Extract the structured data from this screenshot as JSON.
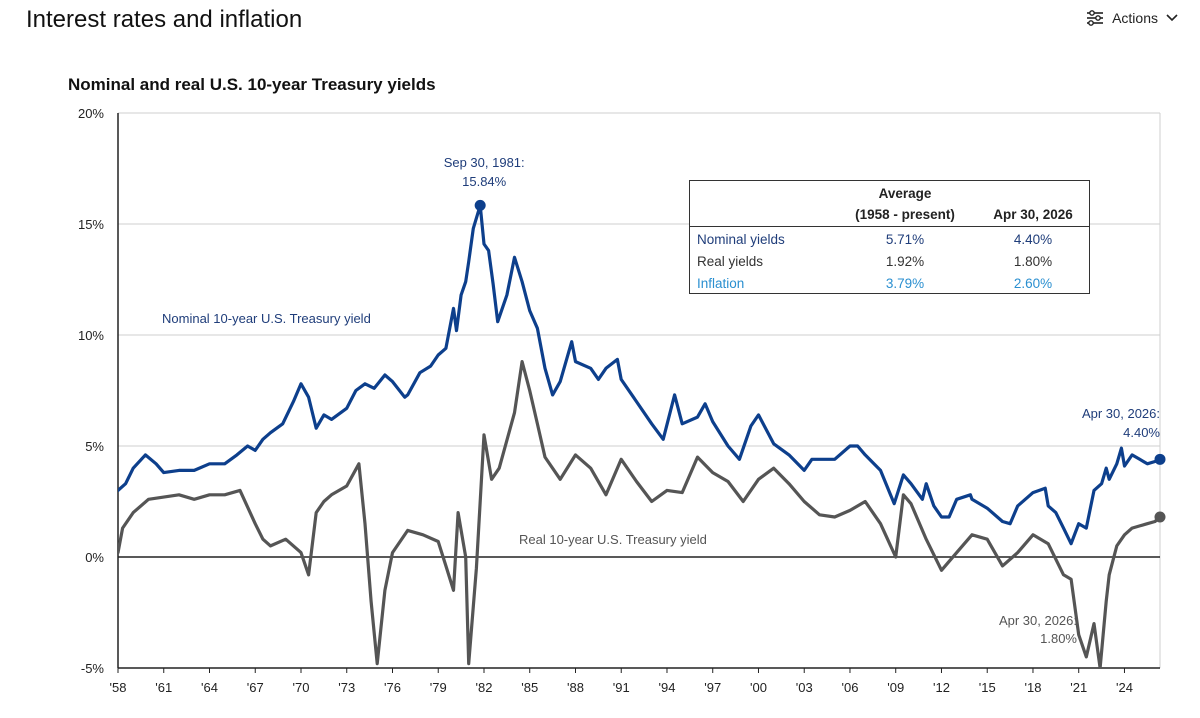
{
  "page": {
    "title": "Interest rates and inflation",
    "actions_label": "Actions"
  },
  "chart_data": {
    "type": "line",
    "title": "Nominal and real U.S. 10-year Treasury yields",
    "xlabel": "",
    "ylabel": "",
    "ylim": [
      -5,
      20
    ],
    "y_ticks": [
      "20%",
      "15%",
      "10%",
      "5%",
      "0%",
      "-5%"
    ],
    "y_tick_values": [
      20,
      15,
      10,
      5,
      0,
      -5
    ],
    "x_ticks": [
      "'58",
      "'61",
      "'64",
      "'67",
      "'70",
      "'73",
      "'76",
      "'79",
      "'82",
      "'85",
      "'88",
      "'91",
      "'94",
      "'97",
      "'00",
      "'03",
      "'06",
      "'09",
      "'12",
      "'15",
      "'18",
      "'21",
      "'24"
    ],
    "x_tick_years": [
      1958,
      1961,
      1964,
      1967,
      1970,
      1973,
      1976,
      1979,
      1982,
      1985,
      1988,
      1991,
      1994,
      1997,
      2000,
      2003,
      2006,
      2009,
      2012,
      2015,
      2018,
      2021,
      2024
    ],
    "xlim": [
      1958,
      2026.33
    ],
    "grid": true,
    "legend": "inline labels",
    "colors": {
      "nominal": "#0d3f8c",
      "real": "#555555",
      "inflation": "#2a8fd0",
      "navy_text": "#1f3d7a"
    },
    "series": [
      {
        "name": "Nominal 10-year U.S. Treasury yield",
        "color": "#0d3f8c",
        "x": [
          1958,
          1958.5,
          1959,
          1959.8,
          1960.5,
          1961,
          1962,
          1963,
          1964,
          1965,
          1965.8,
          1966.5,
          1967,
          1967.5,
          1968,
          1968.8,
          1969.5,
          1970,
          1970.5,
          1971,
          1971.5,
          1972,
          1973,
          1973.6,
          1974.2,
          1974.8,
          1975.5,
          1976,
          1976.8,
          1977,
          1977.8,
          1978.5,
          1979,
          1979.5,
          1980,
          1980.2,
          1980.5,
          1980.8,
          1981,
          1981.3,
          1981.75,
          1982,
          1982.3,
          1982.6,
          1982.9,
          1983.5,
          1984,
          1984.5,
          1985,
          1985.5,
          1986,
          1986.5,
          1987,
          1987.75,
          1988,
          1989,
          1989.5,
          1990,
          1990.75,
          1991,
          1992,
          1993,
          1993.75,
          1994.5,
          1995,
          1996,
          1996.5,
          1997,
          1998,
          1998.75,
          1999.5,
          2000,
          2001,
          2002,
          2003,
          2003.5,
          2004,
          2005,
          2006,
          2006.5,
          2007,
          2008,
          2008.9,
          2009.5,
          2010,
          2010.75,
          2011,
          2011.5,
          2012,
          2012.5,
          2013,
          2013.9,
          2014,
          2015,
          2016,
          2016.5,
          2017,
          2018,
          2018.8,
          2019,
          2019.5,
          2020,
          2020.5,
          2021,
          2021.5,
          2022,
          2022.5,
          2022.8,
          2023,
          2023.5,
          2023.8,
          2024,
          2024.5,
          2025,
          2025.5,
          2026,
          2026.33
        ],
        "values": [
          3.0,
          3.3,
          4.0,
          4.6,
          4.2,
          3.8,
          3.9,
          3.9,
          4.2,
          4.2,
          4.6,
          5.0,
          4.8,
          5.3,
          5.6,
          6.0,
          7.0,
          7.8,
          7.2,
          5.8,
          6.4,
          6.2,
          6.7,
          7.5,
          7.8,
          7.6,
          8.2,
          7.9,
          7.2,
          7.3,
          8.3,
          8.6,
          9.1,
          9.4,
          11.2,
          10.2,
          11.8,
          12.4,
          13.3,
          14.8,
          15.84,
          14.1,
          13.8,
          12.3,
          10.6,
          11.8,
          13.5,
          12.4,
          11.1,
          10.3,
          8.5,
          7.3,
          7.9,
          9.7,
          8.8,
          8.5,
          8.0,
          8.5,
          8.9,
          8.0,
          7.0,
          6.0,
          5.3,
          7.3,
          6.0,
          6.3,
          6.9,
          6.1,
          5.0,
          4.4,
          5.9,
          6.4,
          5.1,
          4.6,
          3.9,
          4.4,
          4.4,
          4.4,
          5.0,
          5.0,
          4.6,
          3.9,
          2.4,
          3.7,
          3.3,
          2.6,
          3.3,
          2.3,
          1.8,
          1.8,
          2.6,
          2.8,
          2.6,
          2.2,
          1.6,
          1.5,
          2.3,
          2.9,
          3.1,
          2.3,
          2.0,
          1.3,
          0.6,
          1.5,
          1.3,
          3.0,
          3.3,
          4.0,
          3.5,
          4.2,
          4.9,
          4.1,
          4.6,
          4.4,
          4.2,
          4.3,
          4.4
        ],
        "annotations": [
          {
            "text1": "Sep 30, 1981:",
            "text2": "15.84%",
            "x": 1981.75,
            "y": 15.84
          },
          {
            "text1": "Apr 30, 2026:",
            "text2": "4.40%",
            "x": 2026.33,
            "y": 4.4
          }
        ]
      },
      {
        "name": "Real 10-year U.S. Treasury yield",
        "color": "#555555",
        "x": [
          1958,
          1958.3,
          1959,
          1960,
          1961,
          1962,
          1963,
          1964,
          1965,
          1966,
          1967,
          1967.5,
          1968,
          1969,
          1970,
          1970.5,
          1971,
          1971.5,
          1972,
          1973,
          1973.8,
          1974.2,
          1974.6,
          1975,
          1975.5,
          1976,
          1977,
          1978,
          1979,
          1979.5,
          1980,
          1980.3,
          1980.8,
          1981,
          1981.5,
          1982,
          1982.5,
          1983,
          1984,
          1984.5,
          1985,
          1985.5,
          1986,
          1987,
          1988,
          1989,
          1990,
          1991,
          1992,
          1993,
          1994,
          1995,
          1996,
          1997,
          1998,
          1999,
          2000,
          2001,
          2002,
          2003,
          2004,
          2005,
          2006,
          2007,
          2008,
          2009,
          2009.5,
          2010,
          2011,
          2012,
          2013,
          2014,
          2015,
          2016,
          2017,
          2018,
          2019,
          2020,
          2020.5,
          2021,
          2021.5,
          2022,
          2022.4,
          2022.8,
          2023,
          2023.5,
          2024,
          2024.5,
          2025,
          2025.5,
          2026,
          2026.33
        ],
        "values": [
          0.2,
          1.3,
          2.0,
          2.6,
          2.7,
          2.8,
          2.6,
          2.8,
          2.8,
          3.0,
          1.5,
          0.8,
          0.5,
          0.8,
          0.2,
          -0.8,
          2.0,
          2.5,
          2.8,
          3.2,
          4.2,
          1.5,
          -2.0,
          -4.8,
          -1.5,
          0.2,
          1.2,
          1.0,
          0.7,
          -0.4,
          -1.5,
          2.0,
          0.0,
          -4.8,
          -0.5,
          5.5,
          3.5,
          4.0,
          6.5,
          8.8,
          7.5,
          6.0,
          4.5,
          3.5,
          4.6,
          4.0,
          2.8,
          4.4,
          3.4,
          2.5,
          3.0,
          2.9,
          4.5,
          3.8,
          3.4,
          2.5,
          3.5,
          4.0,
          3.3,
          2.5,
          1.9,
          1.8,
          2.1,
          2.5,
          1.5,
          0.0,
          2.8,
          2.4,
          0.8,
          -0.6,
          0.2,
          1.0,
          0.8,
          -0.4,
          0.2,
          1.0,
          0.6,
          -0.8,
          -1.0,
          -3.5,
          -4.5,
          -3.0,
          -5.0,
          -2.0,
          -0.8,
          0.5,
          1.0,
          1.3,
          1.4,
          1.5,
          1.6,
          1.8
        ],
        "annotations": [
          {
            "text1": "Apr 30, 2026:",
            "text2": "1.80%",
            "x": 2026.33,
            "y": 1.8
          }
        ]
      }
    ],
    "table": {
      "header_avg_line1": "Average",
      "header_avg_line2": "(1958 - present)",
      "header_date": "Apr 30, 2026",
      "rows": [
        {
          "label": "Nominal yields",
          "avg": "5.71%",
          "current": "4.40%",
          "color": "#1f3d7a"
        },
        {
          "label": "Real yields",
          "avg": "1.92%",
          "current": "1.80%",
          "color": "#333333"
        },
        {
          "label": "Inflation",
          "avg": "3.79%",
          "current": "2.60%",
          "color": "#2a8fd0"
        }
      ]
    }
  }
}
